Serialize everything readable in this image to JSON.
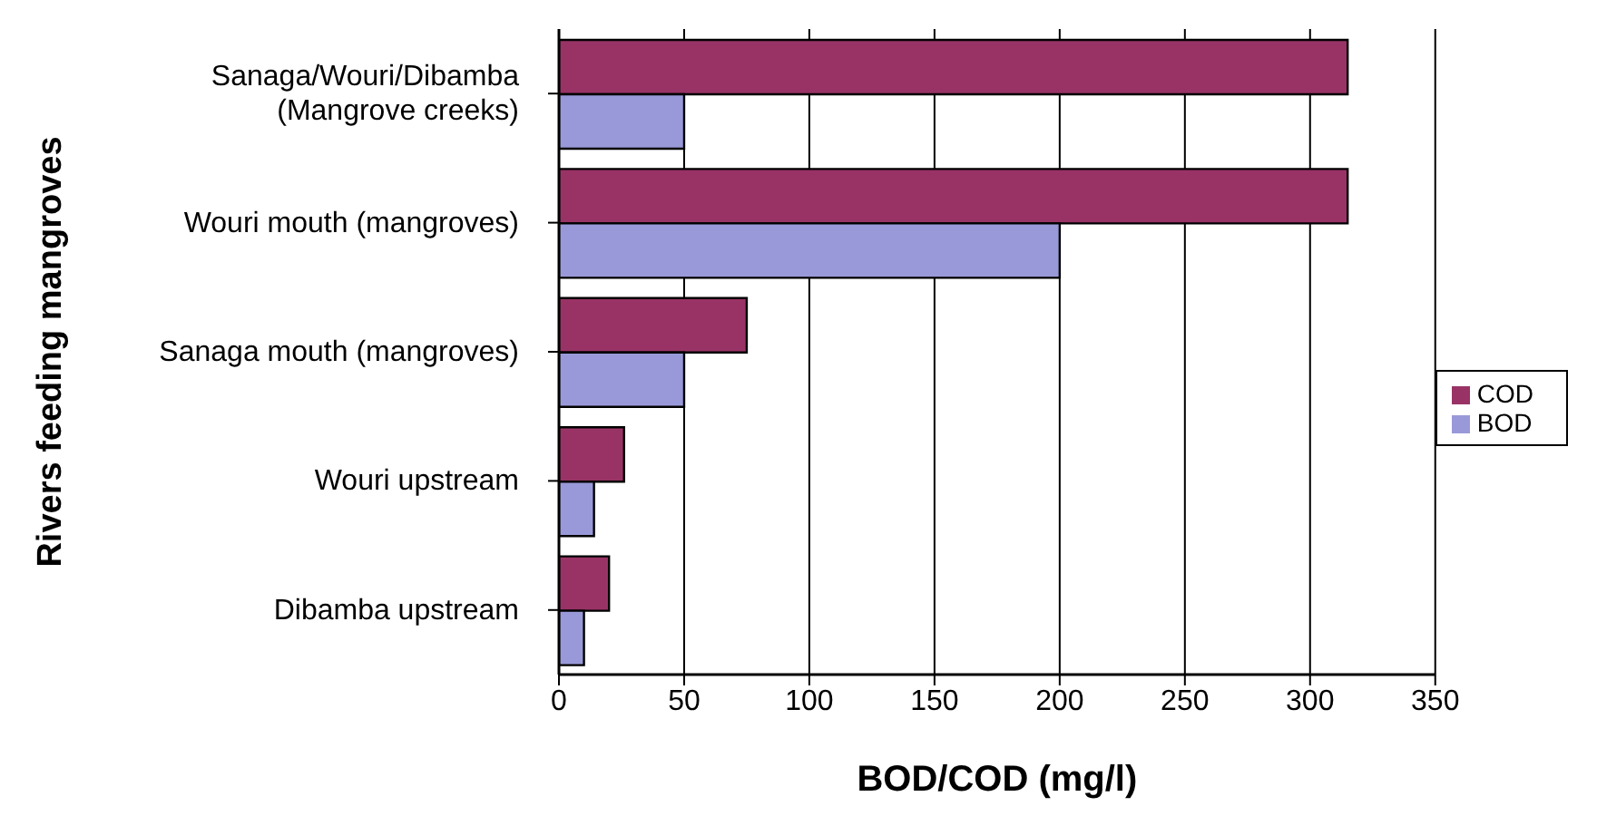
{
  "chart_data": {
    "type": "bar",
    "orientation": "horizontal",
    "xlabel": "BOD/COD (mg/l)",
    "ylabel": "Rivers feeding mangroves",
    "categories": [
      "Sanaga/Wouri/Dibamba (Mangrove creeks)",
      "Wouri mouth (mangroves)",
      "Sanaga mouth (mangroves)",
      "Wouri upstream",
      "Dibamba upstream"
    ],
    "series": [
      {
        "name": "COD",
        "color": "#993366",
        "values": [
          315,
          315,
          75,
          26,
          20
        ]
      },
      {
        "name": "BOD",
        "color": "#9999d9",
        "values": [
          50,
          200,
          50,
          14,
          10
        ]
      }
    ],
    "xlim": [
      0,
      350
    ],
    "xticks": [
      0,
      50,
      100,
      150,
      200,
      250,
      300,
      350
    ],
    "grid": "x",
    "legend": "right"
  }
}
